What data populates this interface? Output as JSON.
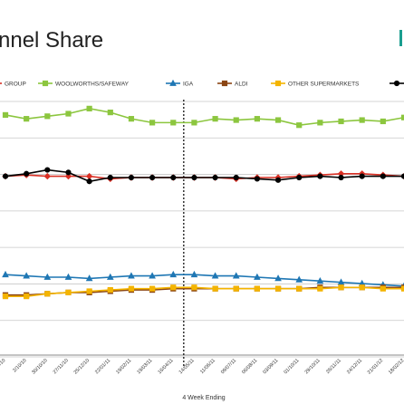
{
  "chart_data": {
    "type": "line",
    "title": "nnel Share",
    "xlabel": "4 Week Ending",
    "ylabel": "",
    "grid": true,
    "legend_position": "top",
    "x": [
      "…/10",
      "2/10/10",
      "30/10/10",
      "27/11/10",
      "25/12/10",
      "22/01/11",
      "19/02/11",
      "19/03/11",
      "16/04/11",
      "14/05/11",
      "11/06/11",
      "09/07/11",
      "06/08/11",
      "03/09/11",
      "01/10/11",
      "29/10/11",
      "26/11/11",
      "24/12/11",
      "21/01/12",
      "18/02/12"
    ],
    "reference_line_after_index": 8,
    "ylim": [
      0,
      100
    ],
    "series": [
      {
        "name": "GROUP",
        "color": "#d93025",
        "marker": "diamond",
        "values": [
          70,
          70.5,
          70,
          70,
          70,
          69,
          69.5,
          69.5,
          69.5,
          69.5,
          69.5,
          69,
          69.5,
          69.5,
          70,
          70.5,
          71,
          71,
          70.5,
          70
        ]
      },
      {
        "name": "WOOLWORTHS/SAFEWAY",
        "color": "#8cc63f",
        "marker": "square",
        "values": [
          94,
          92.5,
          93.5,
          94.5,
          96.5,
          95,
          92.5,
          91,
          91,
          91,
          92.5,
          92,
          92.5,
          92,
          90,
          91,
          91.5,
          92,
          91.5,
          93
        ]
      },
      {
        "name": "IGA",
        "color": "#1f77b4",
        "marker": "triangle",
        "values": [
          31.5,
          31,
          30.5,
          30.5,
          30,
          30.5,
          31,
          31,
          31.5,
          31.5,
          31,
          31,
          30.5,
          30,
          29.5,
          29,
          28.5,
          28,
          27.5,
          27
        ]
      },
      {
        "name": "ALDI",
        "color": "#8b4513",
        "marker": "square",
        "values": [
          23.5,
          23.5,
          24,
          24.5,
          24.5,
          25,
          25.5,
          25.5,
          26,
          26,
          26,
          26,
          26,
          26,
          26,
          26.5,
          26.5,
          26.5,
          26.5,
          26.5
        ]
      },
      {
        "name": "OTHER SUPERMARKETS",
        "color": "#f4b400",
        "marker": "square",
        "values": [
          23,
          23,
          24,
          24.5,
          25,
          25.5,
          26,
          26,
          26.5,
          26.5,
          26,
          26,
          26,
          26,
          26,
          26,
          26.5,
          26.5,
          26,
          26
        ]
      },
      {
        "name": "",
        "color": "#000000",
        "marker": "circle",
        "values": [
          70,
          71,
          72.5,
          71.5,
          68,
          69.5,
          69.5,
          69.5,
          69.5,
          69.5,
          69.5,
          69.5,
          69,
          68.5,
          69.5,
          70,
          69.5,
          70,
          70,
          70
        ]
      }
    ]
  }
}
